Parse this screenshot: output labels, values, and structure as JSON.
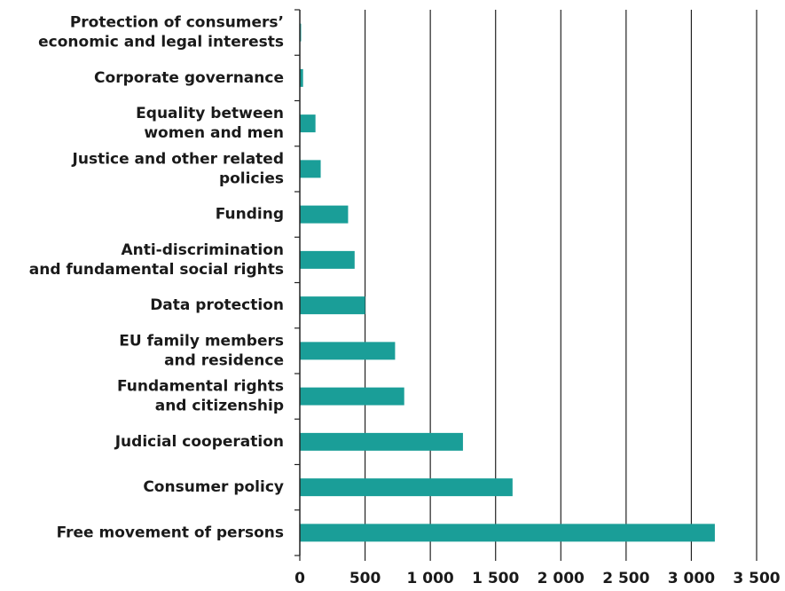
{
  "chart_data": {
    "type": "bar",
    "orientation": "horizontal",
    "categories": [
      [
        "Protection of consumers’",
        "economic and legal interests"
      ],
      [
        "Corporate governance"
      ],
      [
        "Equality between",
        "women and men"
      ],
      [
        "Justice and other related",
        "policies"
      ],
      [
        "Funding"
      ],
      [
        "Anti-discrimination",
        "and fundamental social rights"
      ],
      [
        "Data protection"
      ],
      [
        "EU family members",
        "and residence"
      ],
      [
        "Fundamental rights",
        "and citizenship"
      ],
      [
        "Judicial cooperation"
      ],
      [
        "Consumer policy"
      ],
      [
        "Free movement of persons"
      ]
    ],
    "values": [
      10,
      25,
      120,
      160,
      370,
      420,
      500,
      730,
      800,
      1250,
      1630,
      3180
    ],
    "color": "#1a9e98",
    "xlim": [
      0,
      3500
    ],
    "xticks": [
      0,
      500,
      {
        "value": 1000,
        "label": "1 000"
      },
      {
        "value": 1500,
        "label": "1 500"
      },
      {
        "value": 2000,
        "label": "2 000"
      },
      {
        "value": 2500,
        "label": "2 500"
      },
      {
        "value": 3000,
        "label": "3 000"
      },
      {
        "value": 3500,
        "label": "3 500"
      }
    ],
    "grid": true
  }
}
